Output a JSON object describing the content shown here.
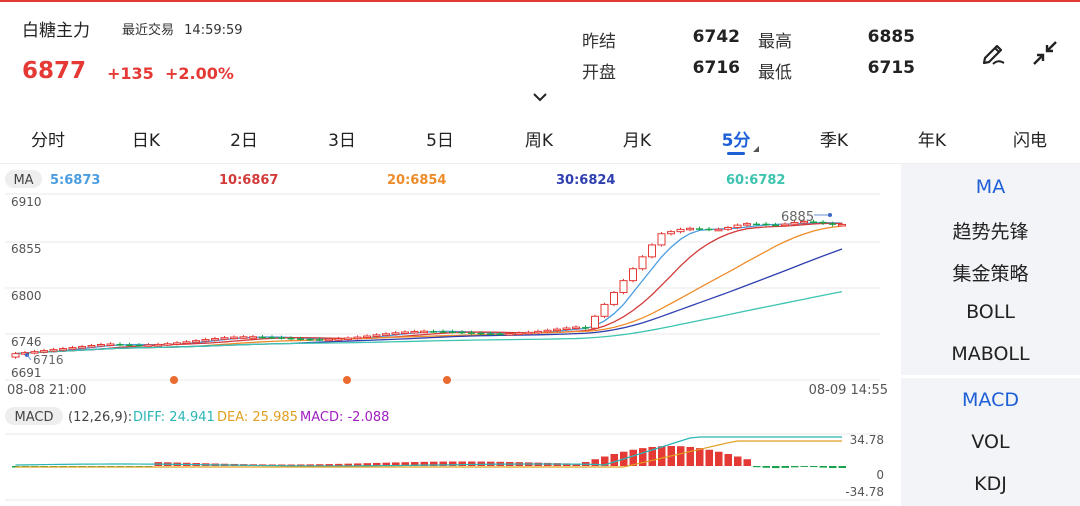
{
  "header": {
    "title": "白糖主力",
    "last_trade_label": "最近交易",
    "last_trade_time": "14:59:59",
    "price": "6877",
    "change": "+135",
    "change_pct": "+2.00%"
  },
  "quote": {
    "prev_settle_label": "昨结",
    "prev_settle": "6742",
    "open_label": "开盘",
    "open": "6716",
    "high_label": "最高",
    "high": "6885",
    "low_label": "最低",
    "low": "6715"
  },
  "icons": {
    "draw": "pen-draw-icon",
    "collapse": "collapse-arrows-icon",
    "expand": "chevron-down-icon"
  },
  "tabs": [
    {
      "label": "分时"
    },
    {
      "label": "日K"
    },
    {
      "label": "2日"
    },
    {
      "label": "3日"
    },
    {
      "label": "5日"
    },
    {
      "label": "周K"
    },
    {
      "label": "月K"
    },
    {
      "label": "5分",
      "active": true
    },
    {
      "label": "季K"
    },
    {
      "label": "年K"
    },
    {
      "label": "闪电"
    }
  ],
  "ma_legend": {
    "tag": "MA",
    "items": [
      {
        "label": "5:6873",
        "color": "#4a9de0"
      },
      {
        "label": "10:6867",
        "color": "#d33a3a"
      },
      {
        "label": "20:6854",
        "color": "#ef8c2a"
      },
      {
        "label": "30:6824",
        "color": "#2f3fb0"
      },
      {
        "label": "60:6782",
        "color": "#3cc4b0"
      }
    ]
  },
  "price_axis": [
    "6910",
    "6855",
    "6800",
    "6746",
    "6691"
  ],
  "markers": {
    "high": "6885",
    "low": "6716"
  },
  "time_axis": {
    "start": "08-08 21:00",
    "end": "08-09 14:55"
  },
  "macd_legend": {
    "tag": "MACD",
    "params": "(12,26,9):",
    "diff": "DIFF: 24.941",
    "dea": "DEA: 25.985",
    "macd": "MACD: -2.088",
    "diff_color": "#2bb5b5",
    "dea_color": "#e0a020",
    "macd_color": "#a020c0"
  },
  "macd_axis": {
    "top": "34.78",
    "zero": "0",
    "bottom": "-34.78"
  },
  "side_menu": {
    "main": [
      {
        "label": "MA",
        "active": true
      },
      {
        "label": "趋势先锋"
      },
      {
        "label": "集金策略"
      },
      {
        "label": "BOLL"
      },
      {
        "label": "MABOLL"
      }
    ],
    "sub": [
      {
        "label": "MACD",
        "active": true
      },
      {
        "label": "VOL"
      },
      {
        "label": "KDJ"
      }
    ]
  },
  "colors": {
    "up": "#e53935",
    "down": "#17a34a",
    "accent": "#1e5fd8"
  }
}
